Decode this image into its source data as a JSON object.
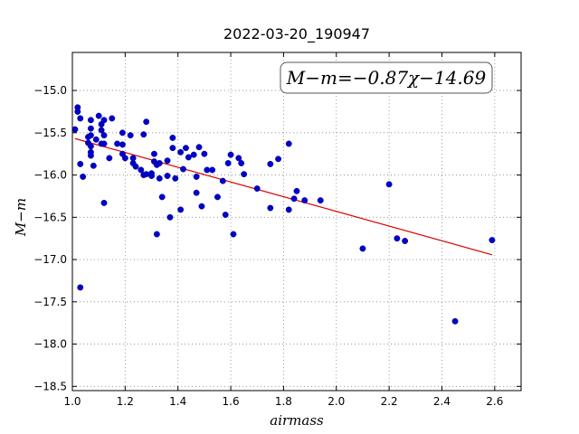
{
  "chart_data": {
    "type": "scatter",
    "title": "2022-03-20_190947",
    "xlabel": "airmass",
    "ylabel": "M−m",
    "xlim": [
      1.0,
      2.7
    ],
    "ylim": [
      -18.55,
      -14.55
    ],
    "x_ticks": [
      "1.0",
      "1.2",
      "1.4",
      "1.6",
      "1.8",
      "2.0",
      "2.2",
      "2.4",
      "2.6"
    ],
    "y_ticks": [
      "−15.0",
      "−15.5",
      "−16.0",
      "−16.5",
      "−17.0",
      "−17.5",
      "−18.0",
      "−18.5"
    ],
    "grid": true,
    "annotation": "M−m=−0.87χ−14.69",
    "colors": {
      "points": "#0000cc",
      "fit_line": "#dd0000"
    },
    "fit": {
      "slope": -0.87,
      "intercept": -14.69,
      "x_range": [
        1.01,
        2.59
      ]
    },
    "points": [
      [
        1.01,
        -15.46
      ],
      [
        1.02,
        -15.25
      ],
      [
        1.02,
        -15.2
      ],
      [
        1.03,
        -15.33
      ],
      [
        1.03,
        -15.87
      ],
      [
        1.04,
        -16.02
      ],
      [
        1.03,
        -17.33
      ],
      [
        1.06,
        -15.55
      ],
      [
        1.06,
        -15.62
      ],
      [
        1.07,
        -15.35
      ],
      [
        1.07,
        -15.45
      ],
      [
        1.07,
        -15.53
      ],
      [
        1.07,
        -15.66
      ],
      [
        1.07,
        -15.73
      ],
      [
        1.07,
        -15.77
      ],
      [
        1.08,
        -15.89
      ],
      [
        1.09,
        -15.58
      ],
      [
        1.1,
        -15.3
      ],
      [
        1.11,
        -15.4
      ],
      [
        1.11,
        -15.47
      ],
      [
        1.12,
        -15.35
      ],
      [
        1.12,
        -15.53
      ],
      [
        1.11,
        -15.63
      ],
      [
        1.12,
        -15.63
      ],
      [
        1.12,
        -16.33
      ],
      [
        1.14,
        -15.8
      ],
      [
        1.15,
        -15.33
      ],
      [
        1.17,
        -15.63
      ],
      [
        1.19,
        -15.64
      ],
      [
        1.19,
        -15.5
      ],
      [
        1.19,
        -15.75
      ],
      [
        1.2,
        -15.8
      ],
      [
        1.22,
        -15.53
      ],
      [
        1.23,
        -15.8
      ],
      [
        1.23,
        -15.86
      ],
      [
        1.24,
        -15.9
      ],
      [
        1.26,
        -15.94
      ],
      [
        1.27,
        -16.0
      ],
      [
        1.27,
        -15.52
      ],
      [
        1.28,
        -15.37
      ],
      [
        1.28,
        -15.99
      ],
      [
        1.3,
        -15.98
      ],
      [
        1.3,
        -16.01
      ],
      [
        1.31,
        -15.75
      ],
      [
        1.31,
        -15.84
      ],
      [
        1.32,
        -15.88
      ],
      [
        1.33,
        -15.86
      ],
      [
        1.33,
        -16.04
      ],
      [
        1.32,
        -16.7
      ],
      [
        1.34,
        -16.26
      ],
      [
        1.36,
        -15.83
      ],
      [
        1.36,
        -16.01
      ],
      [
        1.37,
        -16.5
      ],
      [
        1.38,
        -15.56
      ],
      [
        1.38,
        -15.68
      ],
      [
        1.39,
        -16.04
      ],
      [
        1.41,
        -15.73
      ],
      [
        1.41,
        -16.41
      ],
      [
        1.42,
        -15.93
      ],
      [
        1.43,
        -15.68
      ],
      [
        1.44,
        -15.79
      ],
      [
        1.46,
        -15.76
      ],
      [
        1.47,
        -16.02
      ],
      [
        1.47,
        -16.21
      ],
      [
        1.48,
        -15.67
      ],
      [
        1.49,
        -16.37
      ],
      [
        1.5,
        -15.75
      ],
      [
        1.51,
        -15.94
      ],
      [
        1.53,
        -15.94
      ],
      [
        1.55,
        -16.26
      ],
      [
        1.57,
        -16.07
      ],
      [
        1.58,
        -16.47
      ],
      [
        1.59,
        -15.86
      ],
      [
        1.6,
        -15.76
      ],
      [
        1.61,
        -16.7
      ],
      [
        1.63,
        -15.8
      ],
      [
        1.64,
        -15.86
      ],
      [
        1.65,
        -15.99
      ],
      [
        1.7,
        -16.16
      ],
      [
        1.75,
        -15.87
      ],
      [
        1.75,
        -16.39
      ],
      [
        1.78,
        -15.81
      ],
      [
        1.82,
        -15.63
      ],
      [
        1.82,
        -16.41
      ],
      [
        1.84,
        -16.28
      ],
      [
        1.85,
        -16.19
      ],
      [
        1.88,
        -16.3
      ],
      [
        1.94,
        -16.3
      ],
      [
        2.1,
        -16.87
      ],
      [
        2.2,
        -16.11
      ],
      [
        2.23,
        -16.75
      ],
      [
        2.26,
        -16.78
      ],
      [
        2.45,
        -17.73
      ],
      [
        2.59,
        -16.77
      ]
    ]
  }
}
